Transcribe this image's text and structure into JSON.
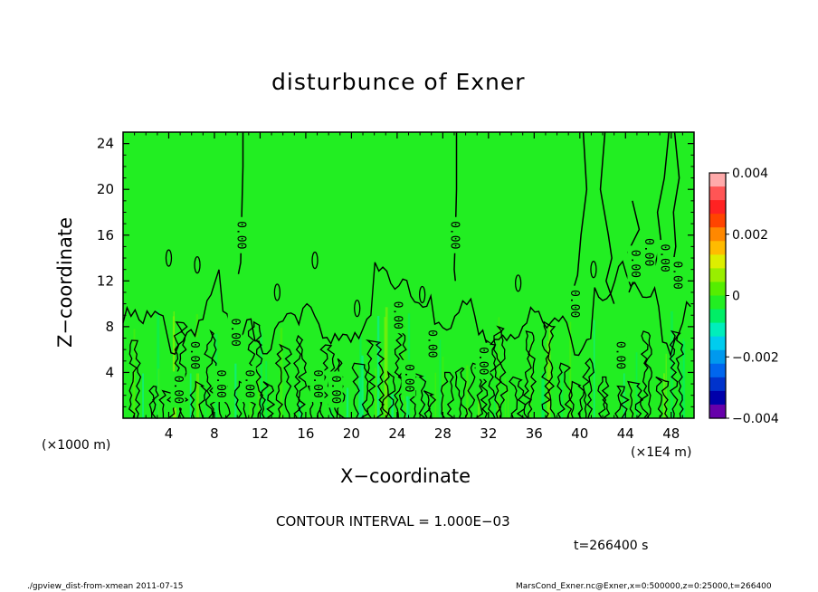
{
  "title": "disturbunce of Exner",
  "x_axis_label": "X−coordinate",
  "y_axis_label": "Z−coordinate",
  "x_unit_left": "(×1000 m)",
  "x_unit_right": "(×1E4 m)",
  "contour_interval": "CONTOUR INTERVAL = 1.000E−03",
  "time_label": "t=266400 s",
  "footer_left": "./gpview_dist-from-xmean   2011-07-15",
  "footer_right": "MarsCond_Exner.nc@Exner,x=0:500000,z=0:25000,t=266400",
  "colors": {
    "background_field": "#22ee22",
    "contour_line": "#000000"
  },
  "chart_data": {
    "type": "heatmap",
    "title": "disturbunce of Exner",
    "xlabel": "X−coordinate",
    "ylabel": "Z−coordinate",
    "xlim": [
      0,
      50
    ],
    "ylim": [
      0,
      25
    ],
    "x_ticks": [
      4,
      8,
      12,
      16,
      20,
      24,
      28,
      32,
      36,
      40,
      44,
      48
    ],
    "x_tick_labels": [
      "4",
      "8",
      "12",
      "16",
      "20",
      "24",
      "28",
      "32",
      "36",
      "40",
      "44",
      "48"
    ],
    "y_ticks": [
      4,
      8,
      12,
      16,
      20,
      24
    ],
    "y_tick_labels": [
      "4",
      "8",
      "12",
      "16",
      "20",
      "24"
    ],
    "colorbar": {
      "min": -0.004,
      "max": 0.004,
      "tick_values": [
        0.004,
        0.002,
        0,
        -0.002,
        -0.004
      ],
      "tick_labels": [
        "0.004",
        "0.002",
        "0",
        "−0.002",
        "−0.004"
      ],
      "colors": [
        "#ffaaaa",
        "#ff5555",
        "#ff2222",
        "#ff4400",
        "#ff8800",
        "#ffbb00",
        "#ddee00",
        "#99ee00",
        "#55ee00",
        "#22ee22",
        "#00ee66",
        "#00eebb",
        "#00ccee",
        "#0099ee",
        "#0066ee",
        "#0033cc",
        "#0000aa",
        "#6600aa"
      ]
    },
    "contour_labels": [
      {
        "text": "0.00",
        "x": 10.3,
        "y": 16
      },
      {
        "text": "0.00",
        "x": 29,
        "y": 16
      },
      {
        "text": "0.00",
        "x": 9.8,
        "y": 7.5
      },
      {
        "text": "0.00",
        "x": 4.8,
        "y": 2.5
      },
      {
        "text": "0.00",
        "x": 6.2,
        "y": 5.5
      },
      {
        "text": "0.00",
        "x": 8.5,
        "y": 3
      },
      {
        "text": "0.00",
        "x": 11,
        "y": 3
      },
      {
        "text": "0.00",
        "x": 17,
        "y": 3
      },
      {
        "text": "0.00",
        "x": 18.6,
        "y": 2.5
      },
      {
        "text": "0.00",
        "x": 24,
        "y": 9
      },
      {
        "text": "0.00",
        "x": 25,
        "y": 3.5
      },
      {
        "text": "0.00",
        "x": 27,
        "y": 6.5
      },
      {
        "text": "0.00",
        "x": 31.5,
        "y": 5
      },
      {
        "text": "0.00",
        "x": 39.5,
        "y": 10
      },
      {
        "text": "0.00",
        "x": 43.5,
        "y": 5.5
      },
      {
        "text": "0.00",
        "x": 44.8,
        "y": 13.5
      },
      {
        "text": "0.00",
        "x": 46,
        "y": 14.5
      },
      {
        "text": "0.00",
        "x": 47.4,
        "y": 14
      },
      {
        "text": "0.00",
        "x": 48.5,
        "y": 12.5
      }
    ]
  }
}
